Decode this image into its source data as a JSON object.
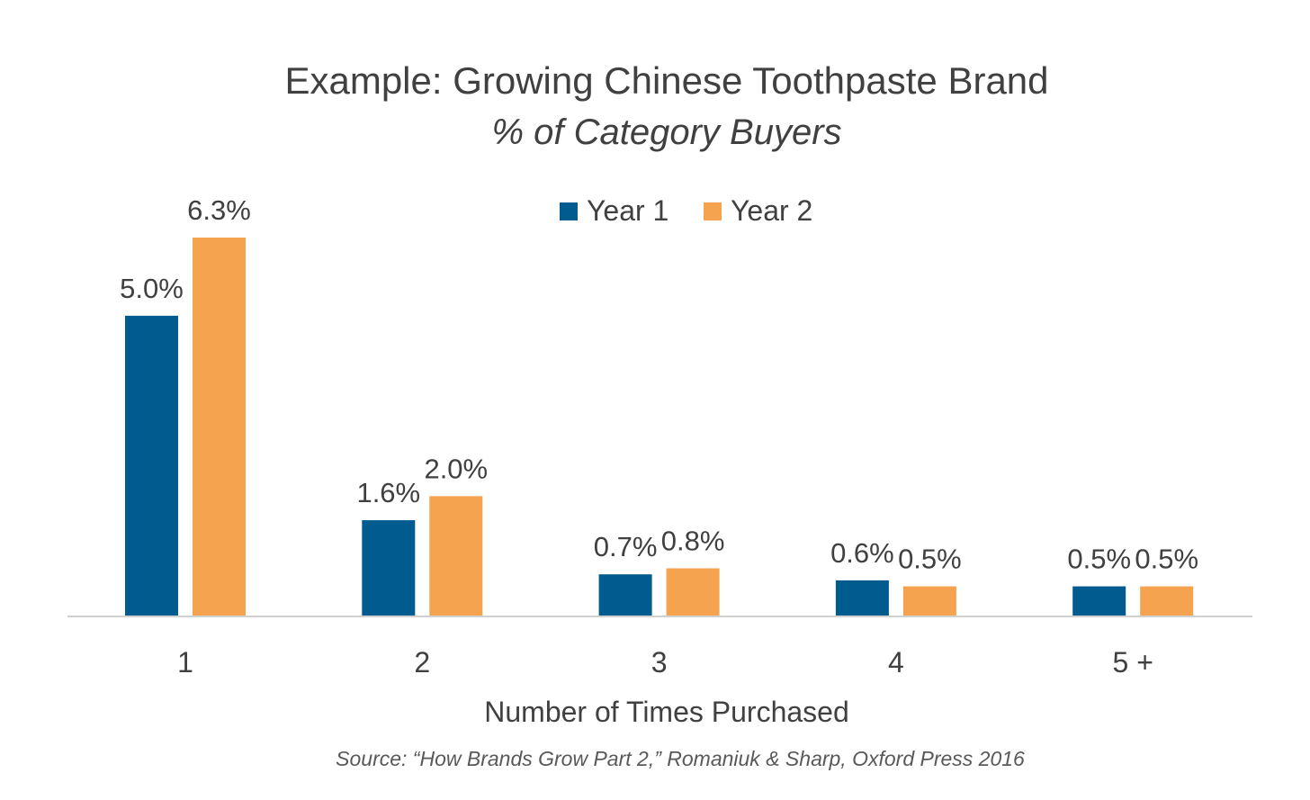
{
  "chart_data": {
    "type": "bar",
    "title": "Example: Growing Chinese Toothpaste Brand",
    "subtitle": "% of Category Buyers",
    "xlabel": "Number of Times Purchased",
    "ylabel": "",
    "categories": [
      "1",
      "2",
      "3",
      "4",
      "5 +"
    ],
    "series": [
      {
        "name": "Year 1",
        "color": "#005b8f",
        "values": [
          5.0,
          1.6,
          0.7,
          0.6,
          0.5
        ],
        "labels": [
          "5.0%",
          "1.6%",
          "0.7%",
          "0.6%",
          "0.5%"
        ]
      },
      {
        "name": "Year 2",
        "color": "#f5a34f",
        "values": [
          6.3,
          2.0,
          0.8,
          0.5,
          0.5
        ],
        "labels": [
          "6.3%",
          "2.0%",
          "0.8%",
          "0.5%",
          "0.5%"
        ]
      }
    ],
    "ylim": [
      0,
      6.3
    ],
    "grid": false,
    "legend_position": "top-center",
    "source": "Source: “How Brands Grow Part 2,” Romaniuk & Sharp, Oxford Press 2016"
  }
}
